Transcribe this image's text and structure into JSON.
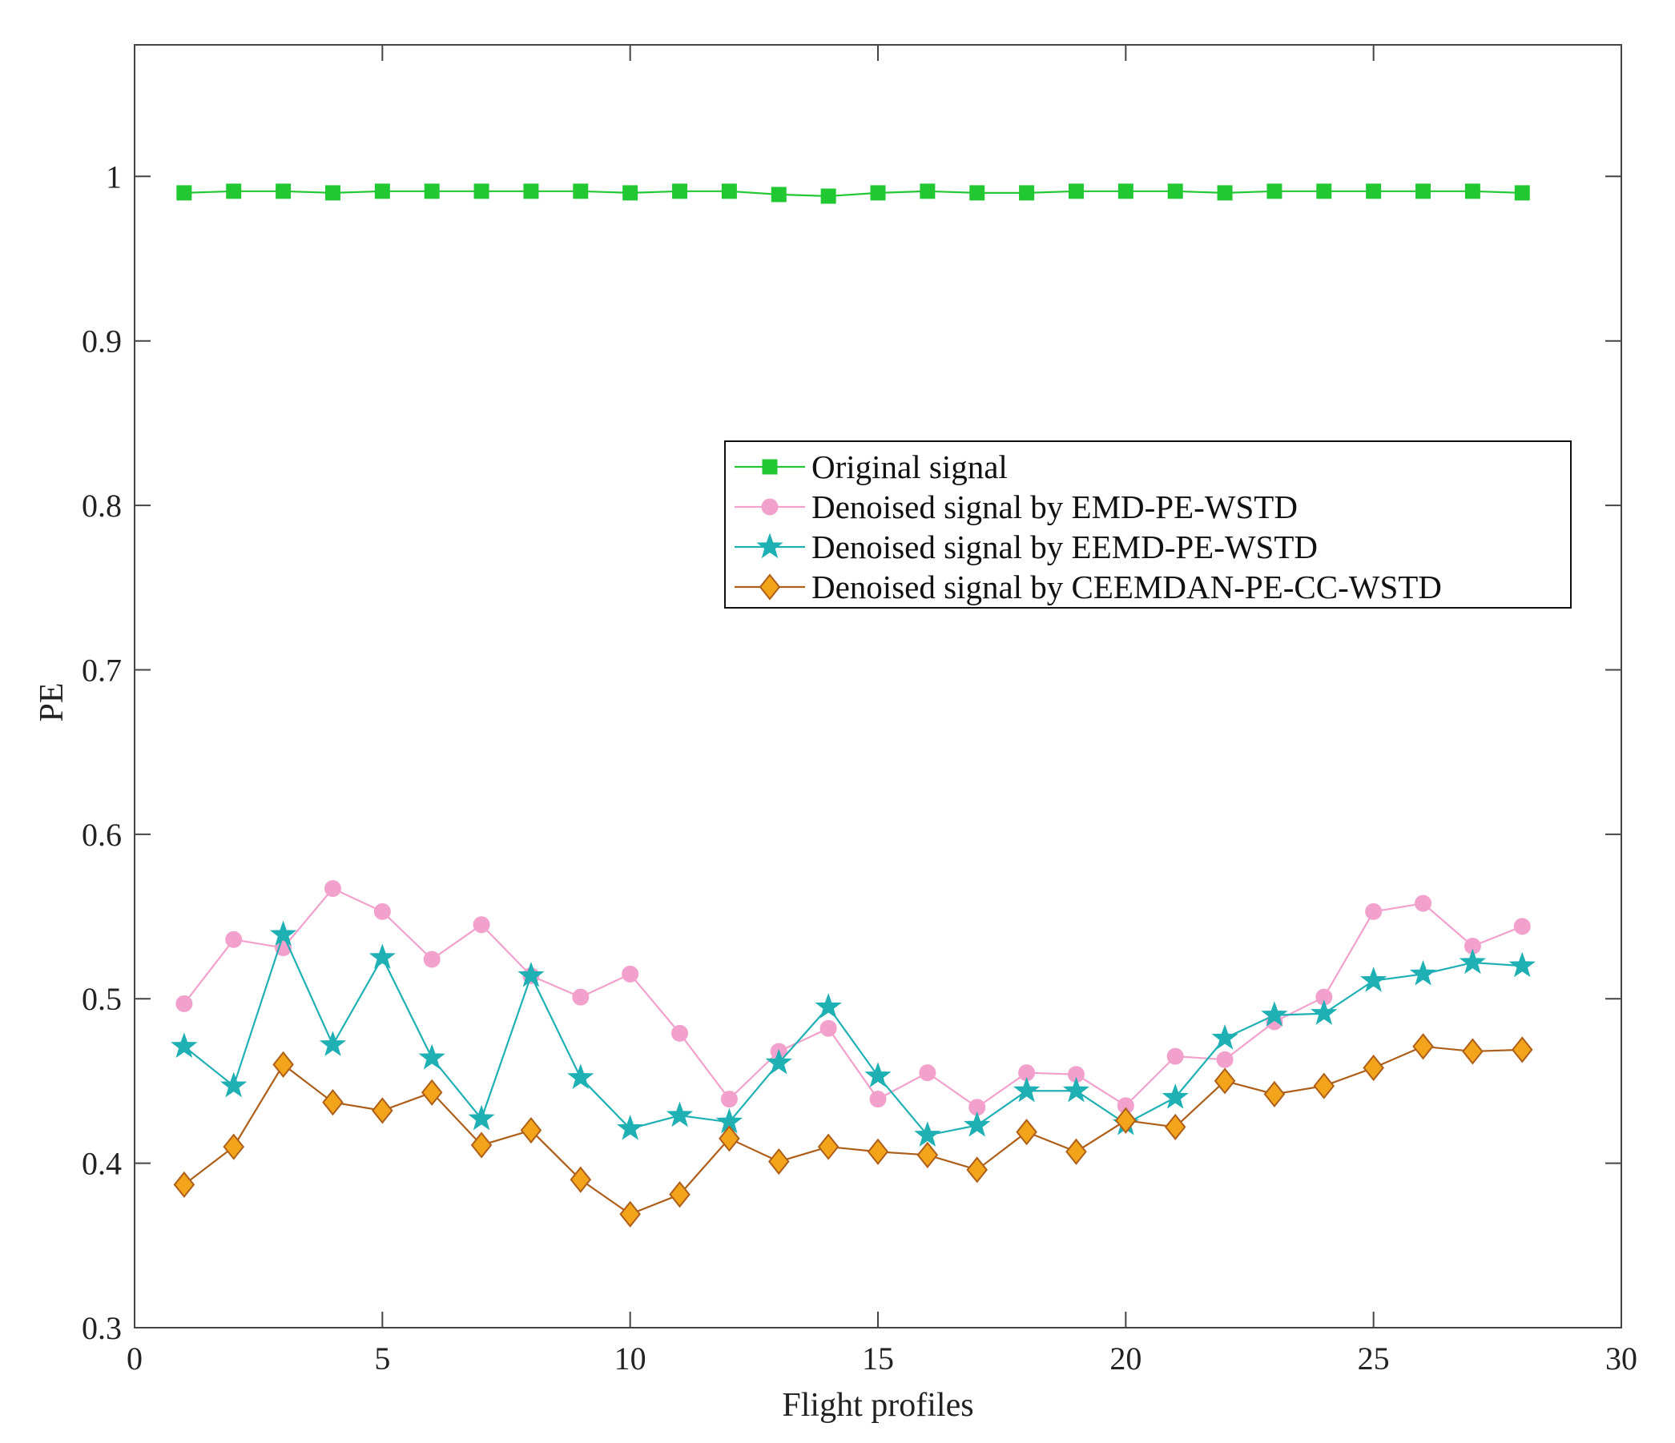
{
  "chart_data": {
    "type": "line",
    "title": "",
    "xlabel": "Flight profiles",
    "ylabel": "PE",
    "xlim": [
      0,
      30
    ],
    "ylim": [
      0.3,
      1.08
    ],
    "xticks": [
      0,
      5,
      10,
      15,
      20,
      25,
      30
    ],
    "xtick_labels": [
      "0",
      "5",
      "10",
      "15",
      "20",
      "25",
      "30"
    ],
    "yticks": [
      0.3,
      0.4,
      0.5,
      0.6,
      0.7,
      0.8,
      0.9,
      1.0
    ],
    "ytick_labels": [
      "0.3",
      "0.4",
      "0.5",
      "0.6",
      "0.7",
      "0.8",
      "0.9",
      "1"
    ],
    "grid": false,
    "legend_position": "center-right",
    "x": [
      1,
      2,
      3,
      4,
      5,
      6,
      7,
      8,
      9,
      10,
      11,
      12,
      13,
      14,
      15,
      16,
      17,
      18,
      19,
      20,
      21,
      22,
      23,
      24,
      25,
      26,
      27,
      28
    ],
    "series": [
      {
        "name": "Original signal",
        "color": "#22c832",
        "marker": "square",
        "values": [
          0.99,
          0.991,
          0.991,
          0.99,
          0.991,
          0.991,
          0.991,
          0.991,
          0.991,
          0.99,
          0.991,
          0.991,
          0.989,
          0.988,
          0.99,
          0.991,
          0.99,
          0.99,
          0.991,
          0.991,
          0.991,
          0.99,
          0.991,
          0.991,
          0.991,
          0.991,
          0.991,
          0.99
        ]
      },
      {
        "name": "Denoised signal by EMD-PE-WSTD",
        "color": "#f2a0cc",
        "marker": "circle",
        "values": [
          0.497,
          0.536,
          0.531,
          0.567,
          0.553,
          0.524,
          0.545,
          0.514,
          0.501,
          0.515,
          0.479,
          0.439,
          0.468,
          0.482,
          0.439,
          0.455,
          0.434,
          0.455,
          0.454,
          0.435,
          0.465,
          0.463,
          0.486,
          0.501,
          0.553,
          0.558,
          0.532,
          0.544
        ]
      },
      {
        "name": "Denoised signal by EEMD-PE-WSTD",
        "color": "#1fb0b4",
        "marker": "star",
        "values": [
          0.471,
          0.447,
          0.539,
          0.472,
          0.525,
          0.464,
          0.427,
          0.514,
          0.452,
          0.421,
          0.429,
          0.425,
          0.461,
          0.495,
          0.453,
          0.417,
          0.423,
          0.444,
          0.444,
          0.424,
          0.44,
          0.476,
          0.49,
          0.491,
          0.511,
          0.515,
          0.522,
          0.52
        ]
      },
      {
        "name": "Denoised signal by CEEMDAN-PE-CC-WSTD",
        "color": "#ad5f1a",
        "marker_fill": "#f2a41a",
        "marker": "diamond",
        "values": [
          0.387,
          0.41,
          0.46,
          0.437,
          0.432,
          0.443,
          0.411,
          0.42,
          0.39,
          0.369,
          0.381,
          0.415,
          0.401,
          0.41,
          0.407,
          0.405,
          0.396,
          0.419,
          0.407,
          0.426,
          0.422,
          0.45,
          0.442,
          0.447,
          0.458,
          0.471,
          0.468,
          0.469
        ]
      }
    ]
  }
}
